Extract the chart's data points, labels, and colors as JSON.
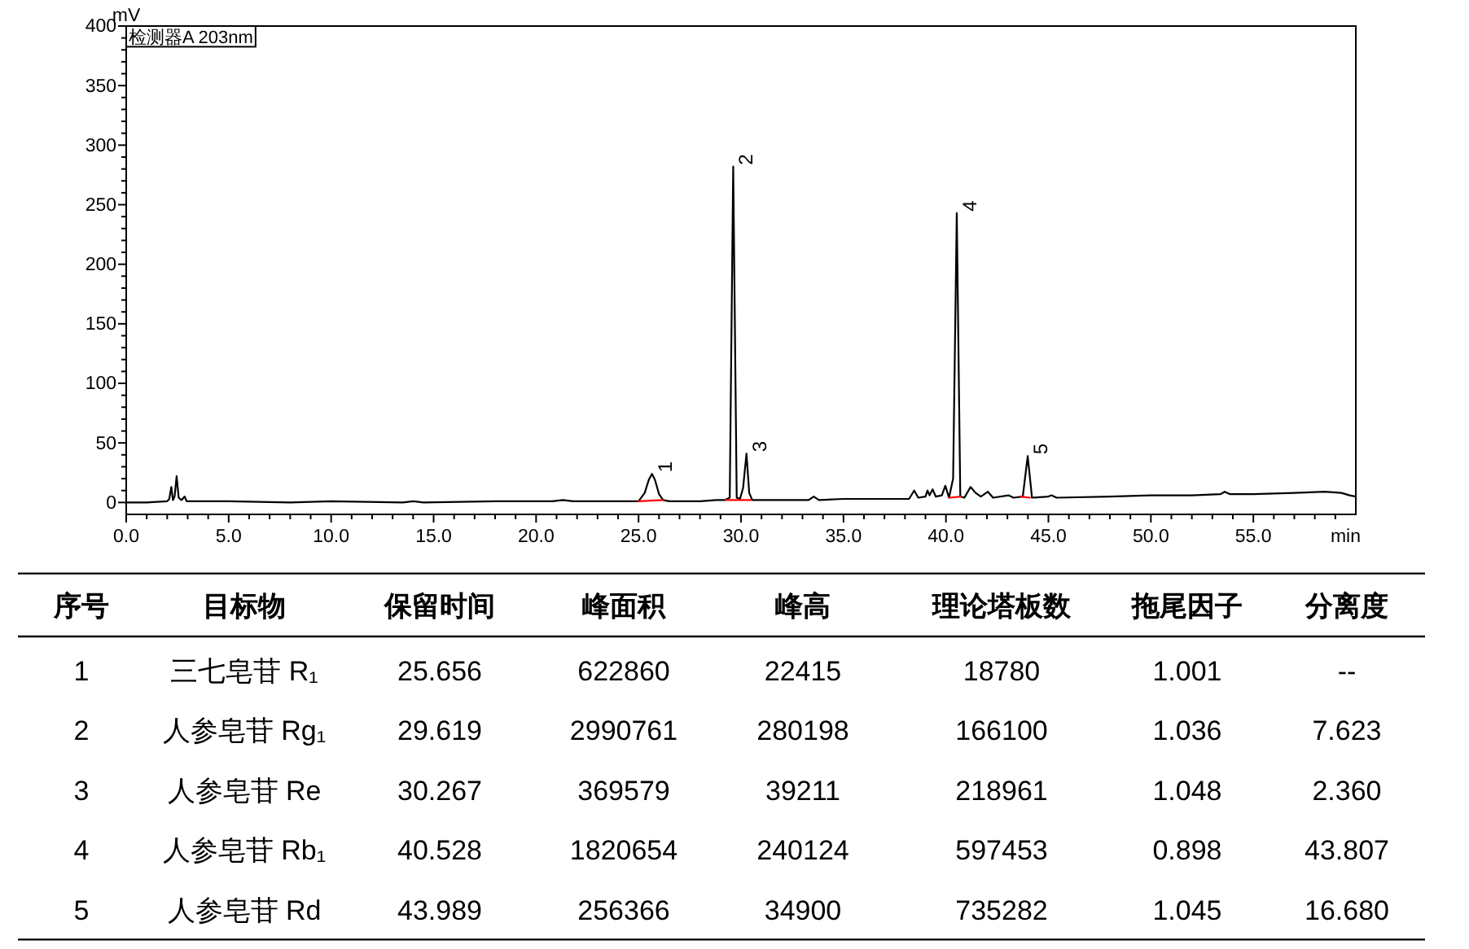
{
  "chart_data": {
    "type": "line",
    "xlabel": "min",
    "ylabel": "mV",
    "xlim": [
      0,
      60
    ],
    "ylim": [
      -10,
      400
    ],
    "xticks": [
      {
        "value": 0,
        "label": "0.0"
      },
      {
        "value": 1,
        "label": null
      },
      {
        "value": 2,
        "label": null
      },
      {
        "value": 3,
        "label": null
      },
      {
        "value": 4,
        "label": null
      },
      {
        "value": 5,
        "label": "5.0"
      },
      {
        "value": 6,
        "label": null
      },
      {
        "value": 7,
        "label": null
      },
      {
        "value": 8,
        "label": null
      },
      {
        "value": 9,
        "label": null
      },
      {
        "value": 10,
        "label": "10.0"
      },
      {
        "value": 11,
        "label": null
      },
      {
        "value": 12,
        "label": null
      },
      {
        "value": 13,
        "label": null
      },
      {
        "value": 14,
        "label": null
      },
      {
        "value": 15,
        "label": "15.0"
      },
      {
        "value": 16,
        "label": null
      },
      {
        "value": 17,
        "label": null
      },
      {
        "value": 18,
        "label": null
      },
      {
        "value": 19,
        "label": null
      },
      {
        "value": 20,
        "label": "20.0"
      },
      {
        "value": 21,
        "label": null
      },
      {
        "value": 22,
        "label": null
      },
      {
        "value": 23,
        "label": null
      },
      {
        "value": 24,
        "label": null
      },
      {
        "value": 25,
        "label": "25.0"
      },
      {
        "value": 26,
        "label": null
      },
      {
        "value": 27,
        "label": null
      },
      {
        "value": 28,
        "label": null
      },
      {
        "value": 29,
        "label": null
      },
      {
        "value": 30,
        "label": "30.0"
      },
      {
        "value": 31,
        "label": null
      },
      {
        "value": 32,
        "label": null
      },
      {
        "value": 33,
        "label": null
      },
      {
        "value": 34,
        "label": null
      },
      {
        "value": 35,
        "label": "35.0"
      },
      {
        "value": 36,
        "label": null
      },
      {
        "value": 37,
        "label": null
      },
      {
        "value": 38,
        "label": null
      },
      {
        "value": 39,
        "label": null
      },
      {
        "value": 40,
        "label": "40.0"
      },
      {
        "value": 41,
        "label": null
      },
      {
        "value": 42,
        "label": null
      },
      {
        "value": 43,
        "label": null
      },
      {
        "value": 44,
        "label": null
      },
      {
        "value": 45,
        "label": "45.0"
      },
      {
        "value": 46,
        "label": null
      },
      {
        "value": 47,
        "label": null
      },
      {
        "value": 48,
        "label": null
      },
      {
        "value": 49,
        "label": null
      },
      {
        "value": 50,
        "label": "50.0"
      },
      {
        "value": 51,
        "label": null
      },
      {
        "value": 52,
        "label": null
      },
      {
        "value": 53,
        "label": null
      },
      {
        "value": 54,
        "label": null
      },
      {
        "value": 55,
        "label": "55.0"
      },
      {
        "value": 56,
        "label": null
      },
      {
        "value": 57,
        "label": null
      },
      {
        "value": 58,
        "label": null
      },
      {
        "value": 59,
        "label": null
      }
    ],
    "yticks": [
      0,
      {
        "value": 10,
        "label": null
      },
      {
        "value": 20,
        "label": null
      },
      {
        "value": 30,
        "label": null
      },
      {
        "value": 40,
        "label": null
      },
      50,
      {
        "value": 60,
        "label": null
      },
      {
        "value": 70,
        "label": null
      },
      {
        "value": 80,
        "label": null
      },
      {
        "value": 90,
        "label": null
      },
      100,
      {
        "value": 110,
        "label": null
      },
      {
        "value": 120,
        "label": null
      },
      {
        "value": 130,
        "label": null
      },
      {
        "value": 140,
        "label": null
      },
      150,
      {
        "value": 160,
        "label": null
      },
      {
        "value": 170,
        "label": null
      },
      {
        "value": 180,
        "label": null
      },
      {
        "value": 190,
        "label": null
      },
      200,
      {
        "value": 210,
        "label": null
      },
      {
        "value": 220,
        "label": null
      },
      {
        "value": 230,
        "label": null
      },
      {
        "value": 240,
        "label": null
      },
      250,
      {
        "value": 260,
        "label": null
      },
      {
        "value": 270,
        "label": null
      },
      {
        "value": 280,
        "label": null
      },
      {
        "value": 290,
        "label": null
      },
      300,
      {
        "value": 310,
        "label": null
      },
      {
        "value": 320,
        "label": null
      },
      {
        "value": 330,
        "label": null
      },
      {
        "value": 340,
        "label": null
      },
      350,
      {
        "value": 360,
        "label": null
      },
      {
        "value": 370,
        "label": null
      },
      {
        "value": 380,
        "label": null
      },
      {
        "value": 390,
        "label": null
      },
      400
    ],
    "legend": "top left",
    "series": [
      {
        "name": "检测器A 203nm",
        "color": "#000000",
        "x": [
          0,
          1,
          2,
          2.1,
          2.2,
          2.28,
          2.36,
          2.46,
          2.56,
          2.7,
          2.85,
          2.95,
          3.3,
          5,
          8,
          10,
          13.5,
          14,
          14.5,
          18,
          20.8,
          21.3,
          21.8,
          24.5,
          25,
          25.3,
          25.5,
          25.656,
          25.8,
          26,
          26.2,
          26.5,
          28,
          28.8,
          29.2,
          29.45,
          29.619,
          29.79,
          29.95,
          30.1,
          30.267,
          30.4,
          30.55,
          31.5,
          33.3,
          33.55,
          33.8,
          35,
          36.5,
          38.2,
          38.45,
          38.65,
          39,
          39.1,
          39.2,
          39.35,
          39.5,
          39.8,
          39.97,
          40.15,
          40.35,
          40.528,
          40.7,
          40.9,
          41.2,
          41.45,
          41.7,
          42.05,
          42.3,
          43.05,
          43.3,
          43.75,
          43.989,
          44.2,
          45,
          45.15,
          45.4,
          48,
          50,
          52,
          53.4,
          53.6,
          53.85,
          55,
          57,
          58.5,
          59.3,
          59.7,
          60
        ],
        "values": [
          0,
          0,
          1,
          3,
          13,
          2,
          5,
          22,
          4,
          2,
          5,
          1,
          1,
          1,
          0,
          1,
          0,
          1,
          0,
          1,
          1,
          2,
          1,
          1,
          1,
          8,
          19,
          24,
          19,
          7,
          2,
          1,
          1,
          2,
          2,
          4,
          282,
          4,
          3,
          12,
          41,
          8,
          2,
          2,
          2,
          5,
          2,
          3,
          3,
          3,
          10,
          4,
          5,
          10,
          6,
          11,
          5,
          6,
          14,
          4,
          20,
          243,
          5,
          4,
          13,
          8,
          5,
          9,
          4,
          6,
          4,
          5,
          39,
          4,
          5,
          6,
          4,
          5,
          6,
          6,
          7,
          9,
          7,
          7,
          8,
          9,
          8,
          6,
          5
        ]
      },
      {
        "color": "#ff0000",
        "x": [
          25,
          26.2,
          27.7,
          29.25,
          30.5,
          35.3,
          40.15,
          40.73,
          42.2,
          43.64,
          44.1
        ],
        "values": [
          1,
          2,
          null,
          2,
          2,
          null,
          4,
          5,
          null,
          5,
          4
        ]
      }
    ],
    "annotations": [
      {
        "text": "1",
        "x": 25.656,
        "y": 24
      },
      {
        "text": "2",
        "x": 29.619,
        "y": 282
      },
      {
        "text": "3",
        "x": 30.267,
        "y": 41
      },
      {
        "text": "4",
        "x": 40.528,
        "y": 243
      },
      {
        "text": "5",
        "x": 43.989,
        "y": 39
      },
      "序号",
      "目标物",
      "保留时间",
      "峰面积",
      "峰高",
      "理论塔板数",
      "拖尾因子",
      "分离度",
      "1",
      "三七皂苷 R₁",
      "25.656",
      "622860",
      "22415",
      "18780",
      "1.001",
      "--",
      "2",
      "人参皂苷 Rg₁",
      "29.619",
      "2990761",
      "280198",
      "166100",
      "1.036",
      "7.623",
      "3",
      "人参皂苷 Re",
      "30.267",
      "369579",
      "39211",
      "218961",
      "1.048",
      "2.360",
      "4",
      "人参皂苷 Rb₁",
      "40.528",
      "1820654",
      "240124",
      "597453",
      "0.898",
      "43.807",
      "5",
      "人参皂苷 Rd",
      "43.989",
      "256366",
      "34900",
      "735282",
      "1.045",
      "16.680"
    ]
  }
}
